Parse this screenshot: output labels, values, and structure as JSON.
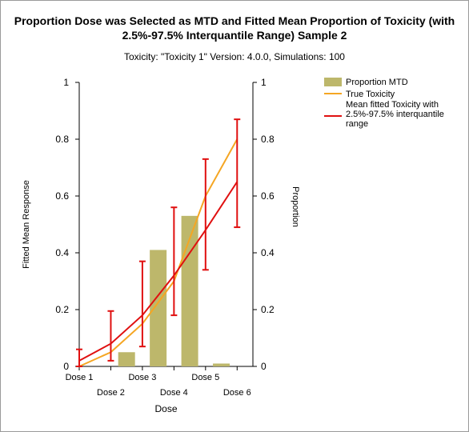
{
  "chart_data": {
    "type": "bar",
    "title_line1": "Proportion Dose was Selected as MTD and Fitted Mean Proportion of Toxicity (with",
    "title_line2": "2.5%-97.5% Interquantile Range) Sample 2",
    "subtitle": "Toxicity: \"Toxicity 1\" Version: 4.0.0, Simulations: 100",
    "xlabel": "Dose",
    "ylabel_left": "Fitted Mean Response",
    "ylabel_right": "Proportion",
    "ylim": [
      0,
      1
    ],
    "y_ticks": [
      "0",
      "0.2",
      "0.4",
      "0.6",
      "0.8",
      "1"
    ],
    "categories": [
      "Dose 1",
      "Dose 2",
      "Dose 3",
      "Dose 4",
      "Dose 5",
      "Dose 6"
    ],
    "legend_position": "top-right",
    "series": [
      {
        "name": "Proportion MTD",
        "kind": "bar",
        "color": "#bdb76b",
        "values": [
          0.0,
          0.05,
          0.41,
          0.53,
          0.01,
          0.0
        ]
      },
      {
        "name": "True Toxicity",
        "kind": "line",
        "color": "#f5a623",
        "values": [
          0.0,
          0.05,
          0.15,
          0.3,
          0.6,
          0.8
        ]
      },
      {
        "name": "Mean fitted Toxicity with 2.5%-97.5% interquantile range",
        "kind": "line",
        "color": "#e01010",
        "values": [
          0.02,
          0.08,
          0.18,
          0.32,
          0.48,
          0.65
        ],
        "lower": [
          0.0,
          0.02,
          0.07,
          0.18,
          0.34,
          0.49
        ],
        "upper": [
          0.06,
          0.195,
          0.37,
          0.56,
          0.73,
          0.87
        ]
      }
    ]
  }
}
